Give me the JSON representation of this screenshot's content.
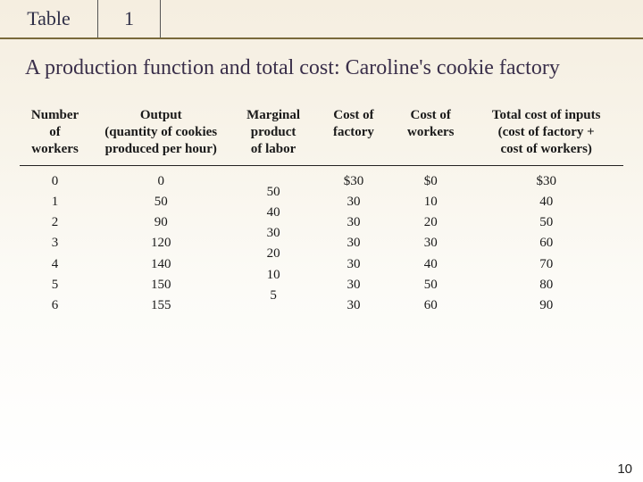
{
  "header": {
    "label": "Table",
    "number": "1"
  },
  "title": "A production function and total cost: Caroline's cookie factory",
  "columns": {
    "workers": "Number\nof workers",
    "output": "Output\n(quantity of cookies\nproduced per hour)",
    "marginal": "Marginal\nproduct\nof labor",
    "factory": "Cost of\nfactory",
    "cworkers": "Cost of\nworkers",
    "total": "Total cost of inputs\n(cost of factory +\ncost of workers)"
  },
  "rows": {
    "workers": [
      "0",
      "1",
      "2",
      "3",
      "4",
      "5",
      "6"
    ],
    "output": [
      "0",
      "50",
      "90",
      "120",
      "140",
      "150",
      "155"
    ],
    "marginal": [
      "50",
      "40",
      "30",
      "20",
      "10",
      "5"
    ],
    "factory": [
      "$30",
      "30",
      "30",
      "30",
      "30",
      "30",
      "30"
    ],
    "cworkers": [
      "$0",
      "10",
      "20",
      "30",
      "40",
      "50",
      "60"
    ],
    "total": [
      "$30",
      "40",
      "50",
      "60",
      "70",
      "80",
      "90"
    ]
  },
  "page_number": "10",
  "style": {
    "background_gradient": [
      "#f5eee0",
      "#ffffff"
    ],
    "header_underline_color": "#7a6a3a",
    "text_color": "#1a1a1a",
    "title_color": "#3a2f4a",
    "font_family": "Times New Roman"
  }
}
